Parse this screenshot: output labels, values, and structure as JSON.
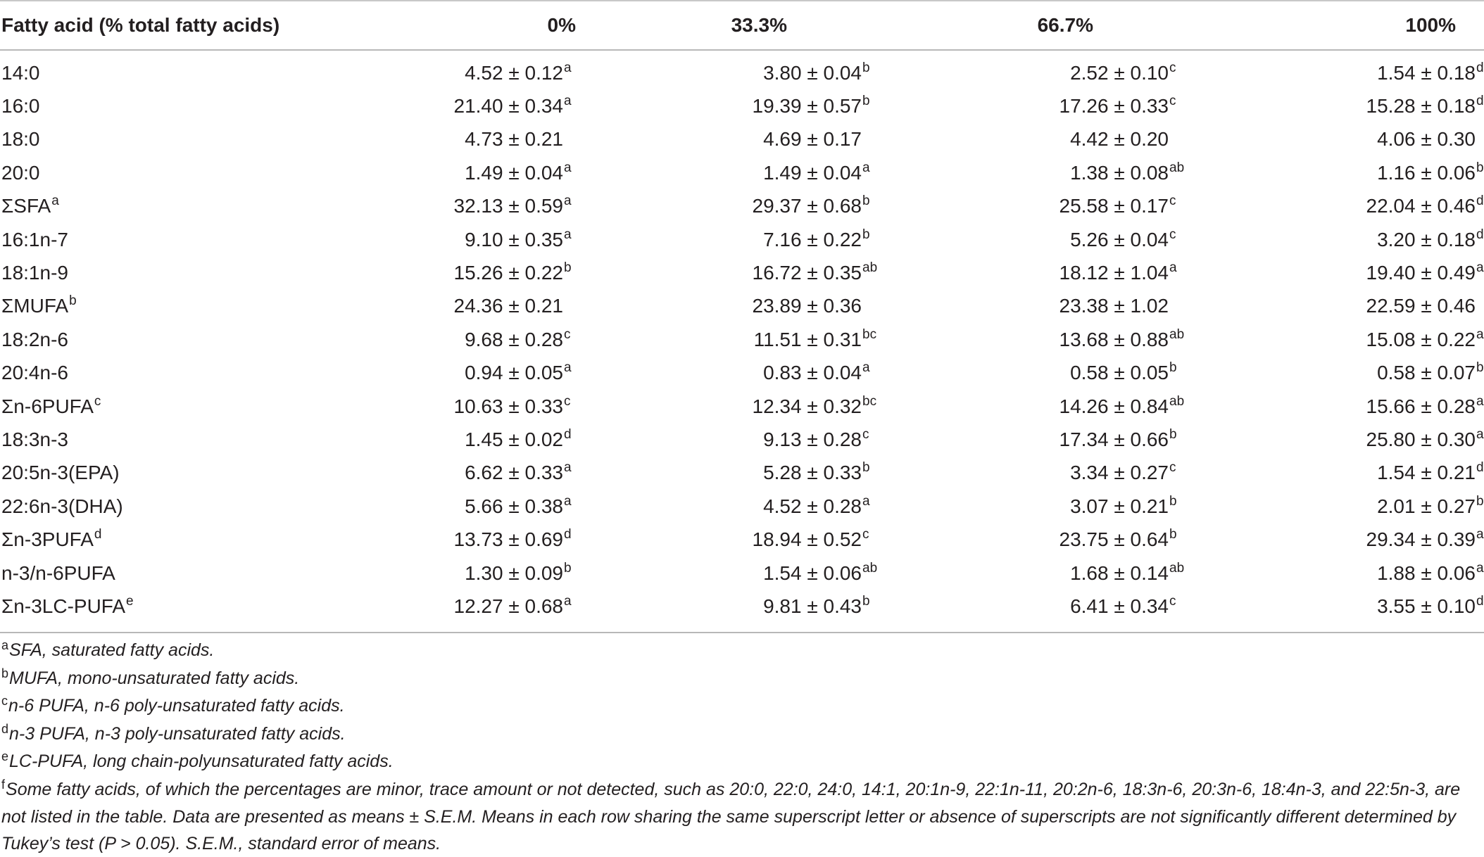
{
  "table": {
    "headers": [
      "Fatty acid (% total fatty acids)",
      "0%",
      "33.3%",
      "66.7%",
      "100%"
    ],
    "rows": [
      {
        "name": "14:0",
        "name_sup": "",
        "cells": [
          [
            "4.52 ± 0.12",
            "a"
          ],
          [
            "3.80 ± 0.04",
            "b"
          ],
          [
            "2.52 ± 0.10",
            "c"
          ],
          [
            "1.54 ± 0.18",
            "d"
          ]
        ]
      },
      {
        "name": "16:0",
        "name_sup": "",
        "cells": [
          [
            "21.40 ± 0.34",
            "a"
          ],
          [
            "19.39 ± 0.57",
            "b"
          ],
          [
            "17.26 ± 0.33",
            "c"
          ],
          [
            "15.28 ± 0.18",
            "d"
          ]
        ]
      },
      {
        "name": "18:0",
        "name_sup": "",
        "cells": [
          [
            "4.73 ± 0.21",
            ""
          ],
          [
            "4.69 ± 0.17",
            ""
          ],
          [
            "4.42 ± 0.20",
            ""
          ],
          [
            "4.06 ± 0.30",
            ""
          ]
        ]
      },
      {
        "name": "20:0",
        "name_sup": "",
        "cells": [
          [
            "1.49 ± 0.04",
            "a"
          ],
          [
            "1.49 ± 0.04",
            "a"
          ],
          [
            "1.38 ± 0.08",
            "ab"
          ],
          [
            "1.16 ± 0.06",
            "b"
          ]
        ]
      },
      {
        "name": "ΣSFA",
        "name_sup": "a",
        "cells": [
          [
            "32.13 ± 0.59",
            "a"
          ],
          [
            "29.37 ± 0.68",
            "b"
          ],
          [
            "25.58 ± 0.17",
            "c"
          ],
          [
            "22.04 ± 0.46",
            "d"
          ]
        ]
      },
      {
        "name": "16:1n-7",
        "name_sup": "",
        "cells": [
          [
            "9.10 ± 0.35",
            "a"
          ],
          [
            "7.16 ± 0.22",
            "b"
          ],
          [
            "5.26 ± 0.04",
            "c"
          ],
          [
            "3.20 ± 0.18",
            "d"
          ]
        ]
      },
      {
        "name": "18:1n-9",
        "name_sup": "",
        "cells": [
          [
            "15.26 ± 0.22",
            "b"
          ],
          [
            "16.72 ± 0.35",
            "ab"
          ],
          [
            "18.12 ± 1.04",
            "a"
          ],
          [
            "19.40 ± 0.49",
            "a"
          ]
        ]
      },
      {
        "name": "ΣMUFA",
        "name_sup": "b",
        "cells": [
          [
            "24.36 ± 0.21",
            ""
          ],
          [
            "23.89 ± 0.36",
            ""
          ],
          [
            "23.38 ± 1.02",
            ""
          ],
          [
            "22.59 ± 0.46",
            ""
          ]
        ]
      },
      {
        "name": "18:2n-6",
        "name_sup": "",
        "cells": [
          [
            "9.68 ± 0.28",
            "c"
          ],
          [
            "11.51 ± 0.31",
            "bc"
          ],
          [
            "13.68 ± 0.88",
            "ab"
          ],
          [
            "15.08 ± 0.22",
            "a"
          ]
        ]
      },
      {
        "name": "20:4n-6",
        "name_sup": "",
        "cells": [
          [
            "0.94 ± 0.05",
            "a"
          ],
          [
            "0.83 ± 0.04",
            "a"
          ],
          [
            "0.58 ± 0.05",
            "b"
          ],
          [
            "0.58 ± 0.07",
            "b"
          ]
        ]
      },
      {
        "name": "Σn-6PUFA",
        "name_sup": "c",
        "cells": [
          [
            "10.63 ± 0.33",
            "c"
          ],
          [
            "12.34 ± 0.32",
            "bc"
          ],
          [
            "14.26 ± 0.84",
            "ab"
          ],
          [
            "15.66 ± 0.28",
            "a"
          ]
        ]
      },
      {
        "name": "18:3n-3",
        "name_sup": "",
        "cells": [
          [
            "1.45 ± 0.02",
            "d"
          ],
          [
            "9.13 ± 0.28",
            "c"
          ],
          [
            "17.34 ± 0.66",
            "b"
          ],
          [
            "25.80 ± 0.30",
            "a"
          ]
        ]
      },
      {
        "name": "20:5n-3(EPA)",
        "name_sup": "",
        "cells": [
          [
            "6.62 ± 0.33",
            "a"
          ],
          [
            "5.28 ± 0.33",
            "b"
          ],
          [
            "3.34 ± 0.27",
            "c"
          ],
          [
            "1.54 ± 0.21",
            "d"
          ]
        ]
      },
      {
        "name": "22:6n-3(DHA)",
        "name_sup": "",
        "cells": [
          [
            "5.66 ± 0.38",
            "a"
          ],
          [
            "4.52 ± 0.28",
            "a"
          ],
          [
            "3.07 ± 0.21",
            "b"
          ],
          [
            "2.01 ± 0.27",
            "b"
          ]
        ]
      },
      {
        "name": "Σn-3PUFA",
        "name_sup": "d",
        "cells": [
          [
            "13.73 ± 0.69",
            "d"
          ],
          [
            "18.94 ± 0.52",
            "c"
          ],
          [
            "23.75 ± 0.64",
            "b"
          ],
          [
            "29.34 ± 0.39",
            "a"
          ]
        ]
      },
      {
        "name": "n-3/n-6PUFA",
        "name_sup": "",
        "cells": [
          [
            "1.30 ± 0.09",
            "b"
          ],
          [
            "1.54 ± 0.06",
            "ab"
          ],
          [
            "1.68 ± 0.14",
            "ab"
          ],
          [
            "1.88 ± 0.06",
            "a"
          ]
        ]
      },
      {
        "name": "Σn-3LC-PUFA",
        "name_sup": "e",
        "cells": [
          [
            "12.27 ± 0.68",
            "a"
          ],
          [
            "9.81 ± 0.43",
            "b"
          ],
          [
            "6.41 ± 0.34",
            "c"
          ],
          [
            "3.55 ± 0.10",
            "d"
          ]
        ]
      }
    ]
  },
  "footnotes": [
    {
      "mark": "a",
      "text": "SFA, saturated fatty acids."
    },
    {
      "mark": "b",
      "text": "MUFA, mono-unsaturated fatty acids."
    },
    {
      "mark": "c",
      "text": "n-6 PUFA, n-6 poly-unsaturated fatty acids."
    },
    {
      "mark": "d",
      "text": "n-3 PUFA, n-3 poly-unsaturated fatty acids."
    },
    {
      "mark": "e",
      "text": "LC-PUFA, long chain-polyunsaturated fatty acids."
    },
    {
      "mark": "f",
      "text": "Some fatty acids, of which the percentages are minor, trace amount or not detected, such as 20:0, 22:0, 24:0, 14:1, 20:1n-9, 22:1n-11, 20:2n-6, 18:3n-6, 20:3n-6, 18:4n-3, and 22:5n-3, are not listed in the table. Data are presented as means ± S.E.M. Means in each row sharing the same superscript letter or absence of superscripts are not significantly different determined by Tukey’s test (P > 0.05). S.E.M., standard error of means."
    }
  ]
}
